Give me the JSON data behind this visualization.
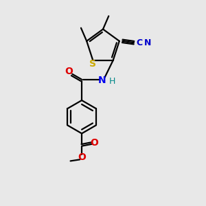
{
  "bg_color": "#e8e8e8",
  "line_color": "#000000",
  "line_width": 1.6,
  "S_color": "#ccaa00",
  "N_color": "#0000ee",
  "O_color": "#dd0000",
  "CN_color": "#0000cc",
  "H_color": "#008888",
  "figsize": [
    3.0,
    3.0
  ],
  "dpi": 100,
  "xlim": [
    0,
    10
  ],
  "ylim": [
    0,
    10
  ]
}
